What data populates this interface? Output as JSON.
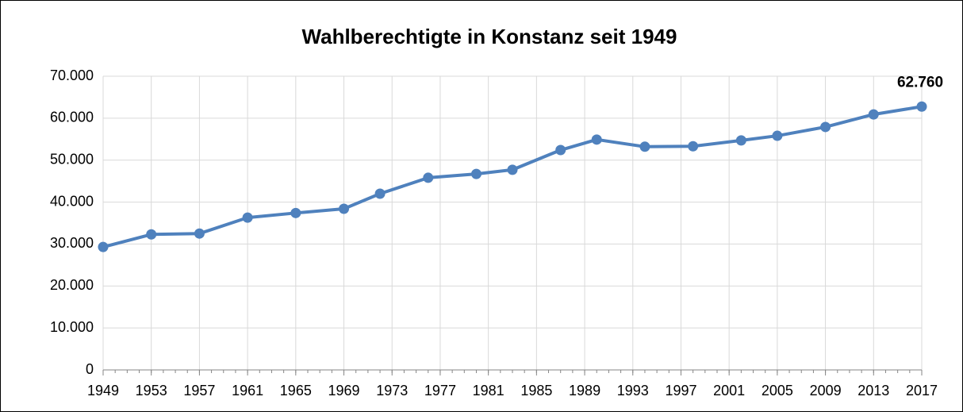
{
  "chart_data": {
    "type": "line",
    "title": "Wahlberechtigte in Konstanz seit 1949",
    "x": [
      1949,
      1953,
      1957,
      1961,
      1965,
      1969,
      1972,
      1976,
      1980,
      1983,
      1987,
      1990,
      1994,
      1998,
      2002,
      2005,
      2009,
      2013,
      2017
    ],
    "series": [
      {
        "name": "Wahlberechtigte",
        "color": "#4f81bd",
        "values": [
          29300,
          32300,
          32500,
          36300,
          37400,
          38400,
          42000,
          45800,
          46700,
          47700,
          52400,
          54900,
          53200,
          53300,
          54700,
          55800,
          57900,
          60900,
          62760
        ],
        "value_labels": [
          null,
          null,
          null,
          null,
          null,
          null,
          null,
          null,
          null,
          null,
          null,
          null,
          null,
          null,
          null,
          null,
          null,
          null,
          "62.760"
        ]
      }
    ],
    "xlim": [
      1949,
      2017
    ],
    "xticks": [
      1949,
      1953,
      1957,
      1961,
      1965,
      1969,
      1973,
      1977,
      1981,
      1985,
      1989,
      1993,
      1997,
      2001,
      2005,
      2009,
      2013,
      2017
    ],
    "ylim": [
      0,
      70000
    ],
    "yticks": [
      0,
      {
        "value": 10000,
        "label": "10.000"
      },
      {
        "value": 20000,
        "label": "20.000"
      },
      {
        "value": 30000,
        "label": "30.000"
      },
      {
        "value": 40000,
        "label": "40.000"
      },
      {
        "value": 50000,
        "label": "50.000"
      },
      {
        "value": 60000,
        "label": "60.000"
      },
      {
        "value": 70000,
        "label": "70.000"
      }
    ],
    "grid": true
  }
}
